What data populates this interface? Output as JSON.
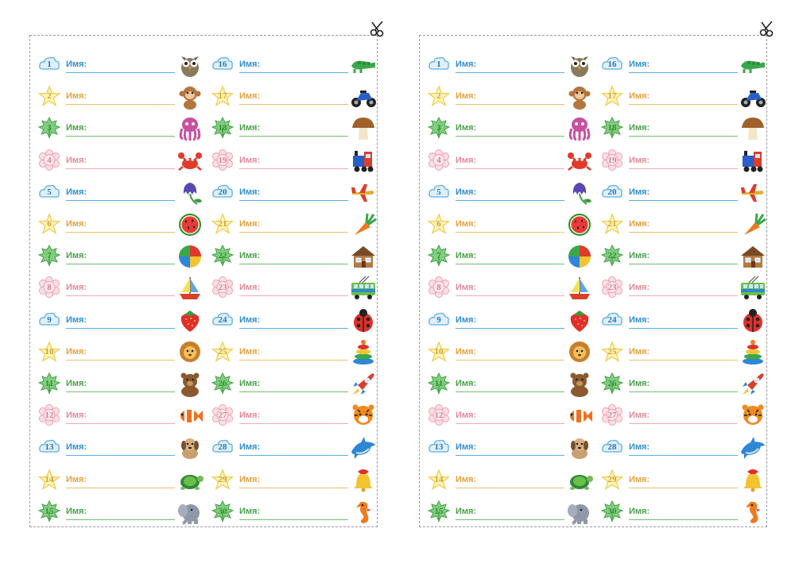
{
  "name_label": "Имя:",
  "cells": [
    {
      "n": "1",
      "shape": "cloud",
      "icon": "owl-icon"
    },
    {
      "n": "2",
      "shape": "star",
      "icon": "monkey-icon"
    },
    {
      "n": "3",
      "shape": "leaf",
      "icon": "octopus-icon"
    },
    {
      "n": "4",
      "shape": "flower",
      "icon": "crab-icon"
    },
    {
      "n": "5",
      "shape": "cloud",
      "icon": "bellflower-icon"
    },
    {
      "n": "6",
      "shape": "star",
      "icon": "watermelon-icon"
    },
    {
      "n": "7",
      "shape": "leaf",
      "icon": "beach-ball-icon"
    },
    {
      "n": "8",
      "shape": "flower",
      "icon": "sailboat-icon"
    },
    {
      "n": "9",
      "shape": "cloud",
      "icon": "strawberry-icon"
    },
    {
      "n": "10",
      "shape": "star",
      "icon": "lion-icon"
    },
    {
      "n": "11",
      "shape": "leaf",
      "icon": "bear-icon"
    },
    {
      "n": "12",
      "shape": "flower",
      "icon": "clownfish-icon"
    },
    {
      "n": "13",
      "shape": "cloud",
      "icon": "dog-icon"
    },
    {
      "n": "14",
      "shape": "star",
      "icon": "turtle-icon"
    },
    {
      "n": "15",
      "shape": "leaf",
      "icon": "elephant-icon"
    },
    {
      "n": "16",
      "shape": "cloud",
      "icon": "crocodile-icon"
    },
    {
      "n": "17",
      "shape": "star",
      "icon": "motorcycle-icon"
    },
    {
      "n": "18",
      "shape": "leaf",
      "icon": "mushroom-icon"
    },
    {
      "n": "19",
      "shape": "flower",
      "icon": "train-icon"
    },
    {
      "n": "20",
      "shape": "cloud",
      "icon": "airplane-icon"
    },
    {
      "n": "21",
      "shape": "star",
      "icon": "carrot-icon"
    },
    {
      "n": "22",
      "shape": "leaf",
      "icon": "house-icon"
    },
    {
      "n": "23",
      "shape": "flower",
      "icon": "trolleybus-icon"
    },
    {
      "n": "24",
      "shape": "cloud",
      "icon": "ladybug-icon"
    },
    {
      "n": "25",
      "shape": "star",
      "icon": "stacking-rings-icon"
    },
    {
      "n": "26",
      "shape": "leaf",
      "icon": "rocket-icon"
    },
    {
      "n": "27",
      "shape": "flower",
      "icon": "tiger-icon"
    },
    {
      "n": "28",
      "shape": "cloud",
      "icon": "dolphin-icon"
    },
    {
      "n": "29",
      "shape": "star",
      "icon": "bell-icon"
    },
    {
      "n": "30",
      "shape": "leaf",
      "icon": "seahorse-icon"
    }
  ]
}
